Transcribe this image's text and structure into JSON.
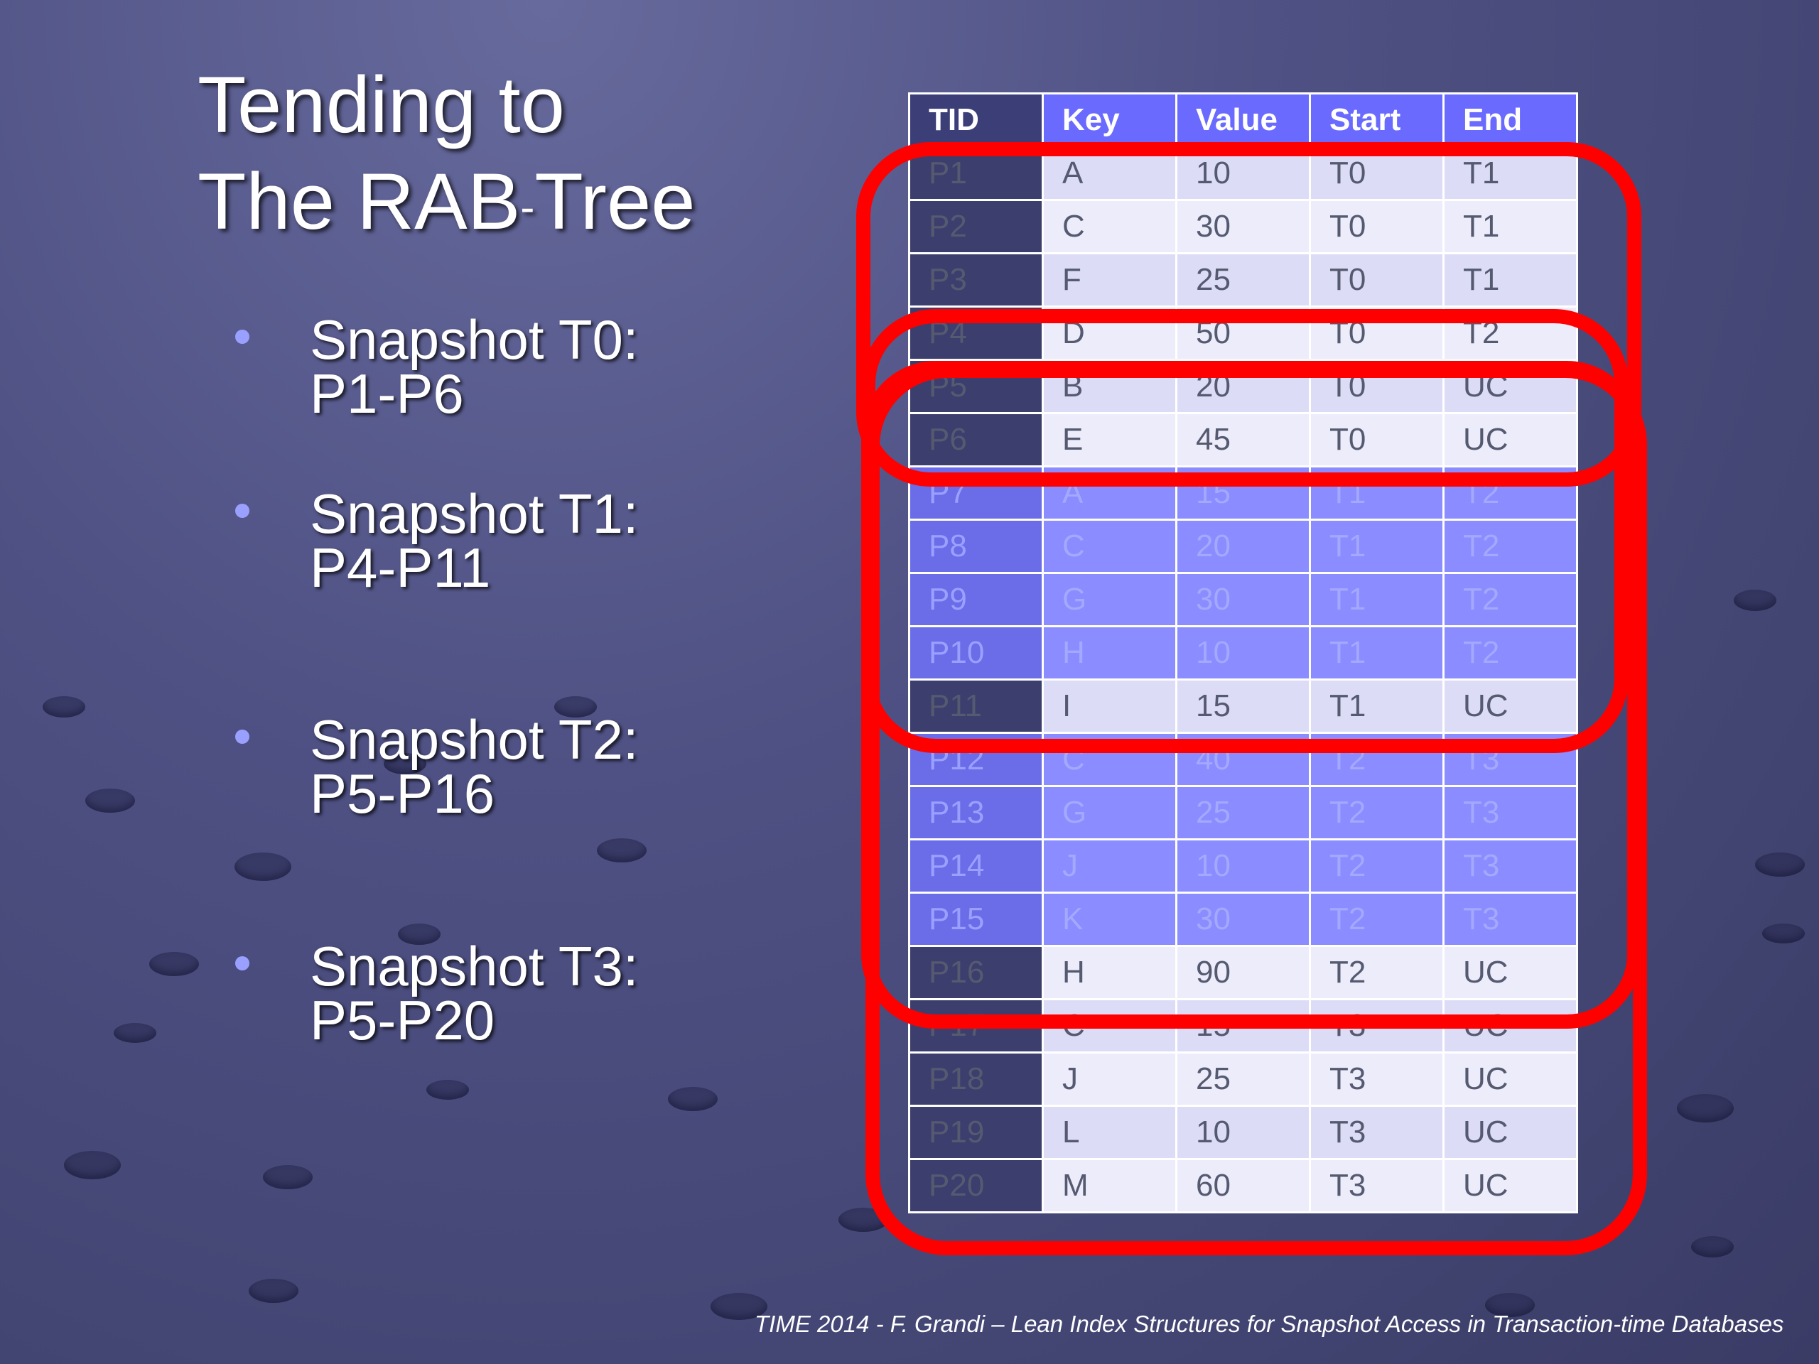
{
  "title": {
    "line1": "Tending to",
    "line2_main": "The RAB",
    "line2_sup": "-",
    "line2_end": "Tree"
  },
  "bullets": [
    {
      "line1": "Snapshot T0:",
      "line2": "P1-P6"
    },
    {
      "line1": "Snapshot T1:",
      "line2": "P4-P11"
    },
    {
      "line1": "Snapshot T2:",
      "line2": "P5-P16"
    },
    {
      "line1": "Snapshot T3:",
      "line2": "P5-P20"
    }
  ],
  "table": {
    "headers": [
      "TID",
      "Key",
      "Value",
      "Start",
      "End"
    ],
    "rows": [
      [
        "P1",
        "A",
        "10",
        "T0",
        "T1"
      ],
      [
        "P2",
        "C",
        "30",
        "T0",
        "T1"
      ],
      [
        "P3",
        "F",
        "25",
        "T0",
        "T1"
      ],
      [
        "P4",
        "D",
        "50",
        "T0",
        "T2"
      ],
      [
        "P5",
        "B",
        "20",
        "T0",
        "UC"
      ],
      [
        "P6",
        "E",
        "45",
        "T0",
        "UC"
      ],
      [
        "P7",
        "A",
        "15",
        "T1",
        "T2"
      ],
      [
        "P8",
        "C",
        "20",
        "T1",
        "T2"
      ],
      [
        "P9",
        "G",
        "30",
        "T1",
        "T2"
      ],
      [
        "P10",
        "H",
        "10",
        "T1",
        "T2"
      ],
      [
        "P11",
        "I",
        "15",
        "T1",
        "UC"
      ],
      [
        "P12",
        "C",
        "40",
        "T2",
        "T3"
      ],
      [
        "P13",
        "G",
        "25",
        "T2",
        "T3"
      ],
      [
        "P14",
        "J",
        "10",
        "T2",
        "T3"
      ],
      [
        "P15",
        "K",
        "30",
        "T2",
        "T3"
      ],
      [
        "P16",
        "H",
        "90",
        "T2",
        "UC"
      ],
      [
        "P17",
        "C",
        "15",
        "T3",
        "UC"
      ],
      [
        "P18",
        "J",
        "25",
        "T3",
        "UC"
      ],
      [
        "P19",
        "L",
        "10",
        "T3",
        "UC"
      ],
      [
        "P20",
        "M",
        "60",
        "T3",
        "UC"
      ]
    ],
    "highlighted_rows": [
      "P7",
      "P8",
      "P9",
      "P10",
      "P12",
      "P13",
      "P14",
      "P15"
    ]
  },
  "colors": {
    "outline": "#ff0000",
    "header": "#6a6aff",
    "highlight": "#8a8cff"
  },
  "footer": "TIME 2014  -  F. Grandi – Lean Index Structures for Snapshot Access in Transaction-time Databases"
}
